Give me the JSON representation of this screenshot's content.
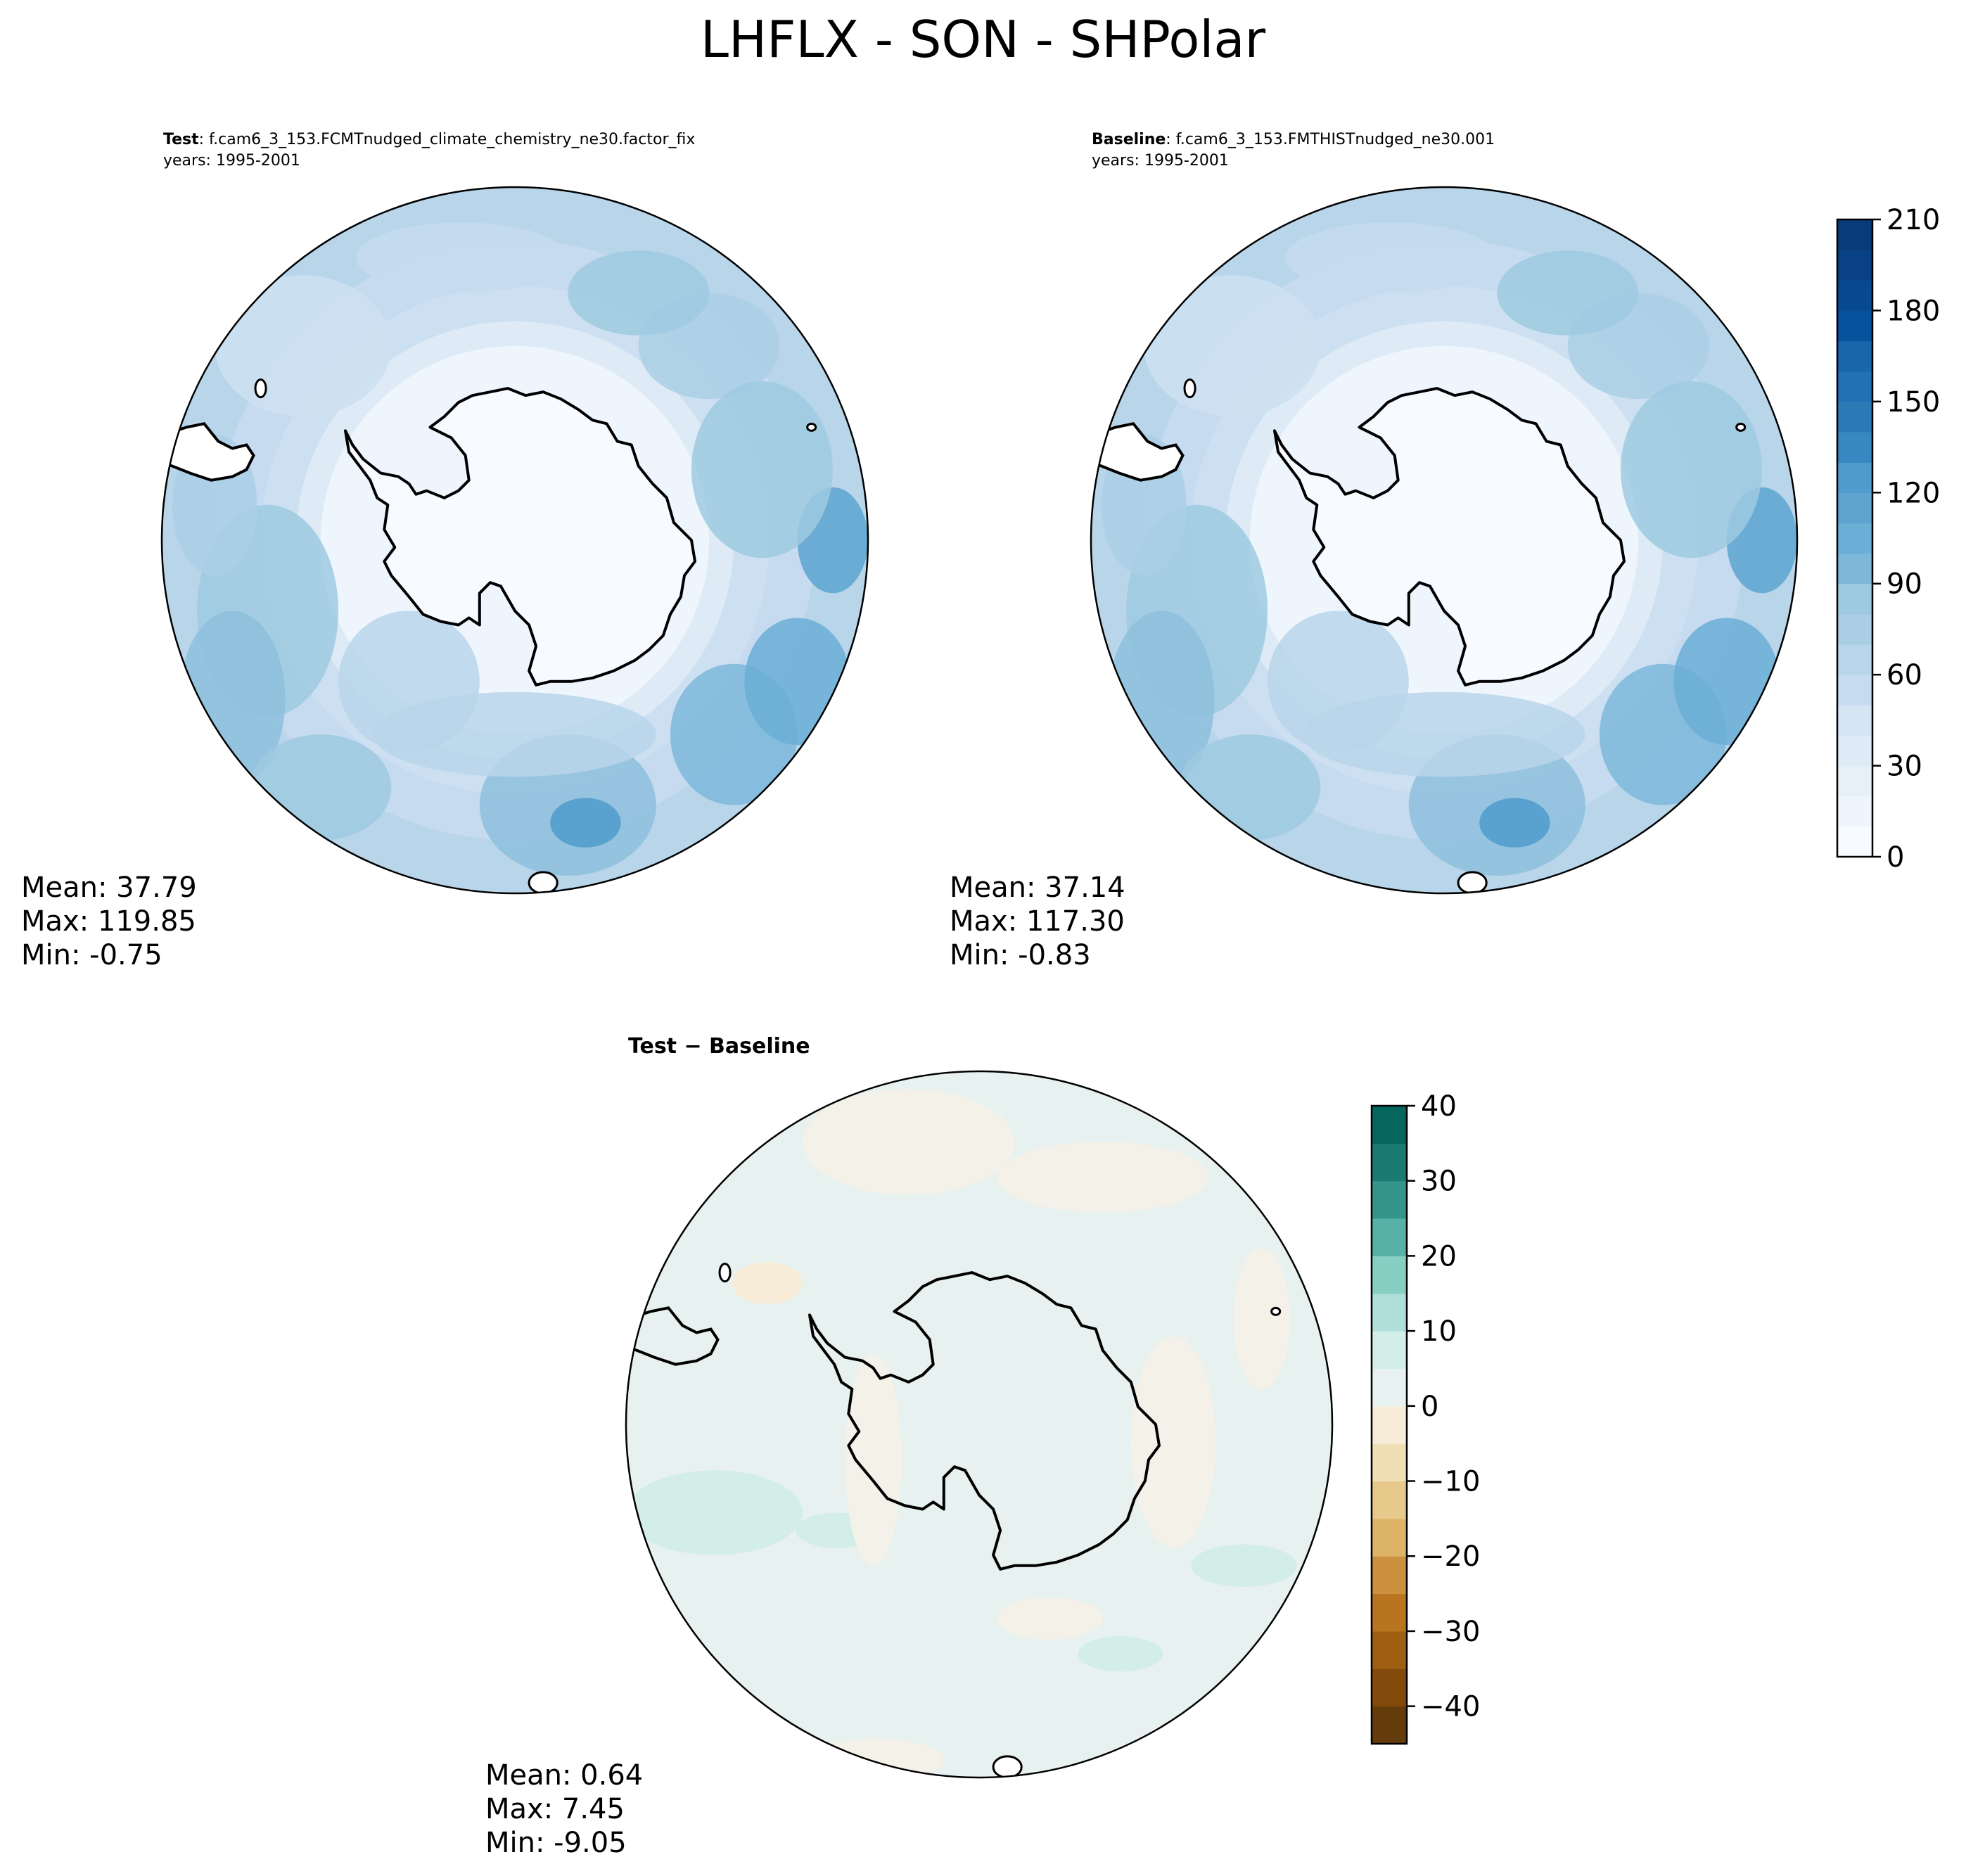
{
  "title": "LHFLX - SON - SHPolar",
  "colors": {
    "blues": [
      "#f7fbff",
      "#eef5fc",
      "#e6f0f9",
      "#deebf7",
      "#d5e5f4",
      "#cde0f1",
      "#c6dbef",
      "#b8d5ea",
      "#aacfe5",
      "#9ecae1",
      "#8dc0dd",
      "#7db7da",
      "#6baed6",
      "#5da4d0",
      "#4f9bcb",
      "#4292c6",
      "#3787c0",
      "#2c7bb6",
      "#2171b5",
      "#1966ad",
      "#115ca5",
      "#08519c",
      "#084a91",
      "#084285",
      "#083b7a",
      "#08306b"
    ],
    "brbg": [
      "#643b0a",
      "#834b0b",
      "#9f5f12",
      "#b8741e",
      "#cb913e",
      "#ddb367",
      "#e6c98b",
      "#f0dfb4",
      "#f6ecd7",
      "#f4f1e8",
      "#e7f1f0",
      "#d3ede9",
      "#afdfd8",
      "#87cfc2",
      "#57b1a5",
      "#36958b",
      "#1a7b73",
      "#05665e",
      "#024e46"
    ],
    "land": "#ffffff",
    "coast": "#000000"
  },
  "panels": {
    "test": {
      "label": "Test",
      "case": ": f.cam6_3_153.FCMTnudged_climate_chemistry_ne30.factor_fix",
      "years": "years: 1995-2001",
      "stats": {
        "mean": "Mean: 37.79",
        "max": "Max: 119.85",
        "min": "Min: -0.75"
      }
    },
    "baseline": {
      "label": "Baseline",
      "case": ": f.cam6_3_153.FMTHISTnudged_ne30.001",
      "years": "years: 1995-2001",
      "stats": {
        "mean": "Mean: 37.14",
        "max": "Max: 117.30",
        "min": "Min: -0.83"
      }
    },
    "diff": {
      "title": "Test − Baseline",
      "stats": {
        "mean": "Mean:  0.64",
        "max": "Max:  7.45",
        "min": "Min: -9.05"
      }
    }
  },
  "chart_data": [
    {
      "type": "heatmap",
      "title": "Test",
      "projection": "south polar stereographic",
      "colorbar": {
        "min": 0,
        "max": 210,
        "step": 10,
        "ticks": [
          0,
          30,
          60,
          90,
          120,
          150,
          180,
          210
        ],
        "tick_labels": [
          "0",
          "30",
          "60",
          "90",
          "120",
          "150",
          "180",
          "210"
        ]
      },
      "stats": {
        "mean": 37.79,
        "max": 119.85,
        "min": -0.75
      }
    },
    {
      "type": "heatmap",
      "title": "Baseline",
      "projection": "south polar stereographic",
      "colorbar": {
        "min": 0,
        "max": 210,
        "step": 10,
        "ticks": [
          0,
          30,
          60,
          90,
          120,
          150,
          180,
          210
        ],
        "tick_labels": [
          "0",
          "30",
          "60",
          "90",
          "120",
          "150",
          "180",
          "210"
        ]
      },
      "stats": {
        "mean": 37.14,
        "max": 117.3,
        "min": -0.83
      }
    },
    {
      "type": "heatmap",
      "title": "Test − Baseline",
      "projection": "south polar stereographic",
      "colorbar": {
        "min": -45,
        "max": 40,
        "step": 5,
        "ticks": [
          -40,
          -30,
          -20,
          -10,
          0,
          10,
          20,
          30,
          40
        ],
        "tick_labels": [
          "−40",
          "−30",
          "−20",
          "−10",
          "0",
          "10",
          "20",
          "30",
          "40"
        ]
      },
      "stats": {
        "mean": 0.64,
        "max": 7.45,
        "min": -9.05
      }
    }
  ]
}
